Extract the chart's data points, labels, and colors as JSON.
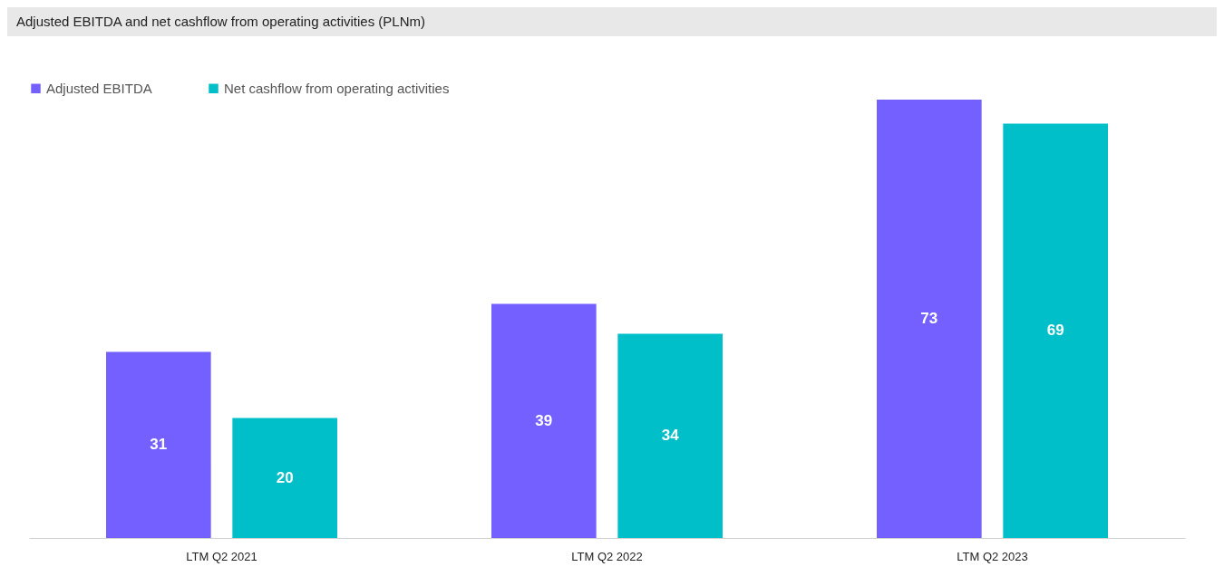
{
  "chart_data": {
    "type": "bar",
    "title": "Adjusted EBITDA and net cashflow from operating activities (PLNm)",
    "categories": [
      "LTM Q2 2021",
      "LTM Q2 2022",
      "LTM Q2 2023"
    ],
    "series": [
      {
        "name": "Adjusted EBITDA",
        "color": "#7360ff",
        "values": [
          31,
          39,
          73
        ]
      },
      {
        "name": "Net cashflow from operating activities",
        "color": "#00bfc8",
        "values": [
          20,
          34,
          69
        ]
      }
    ],
    "data_labels": true,
    "legend": "top left"
  }
}
